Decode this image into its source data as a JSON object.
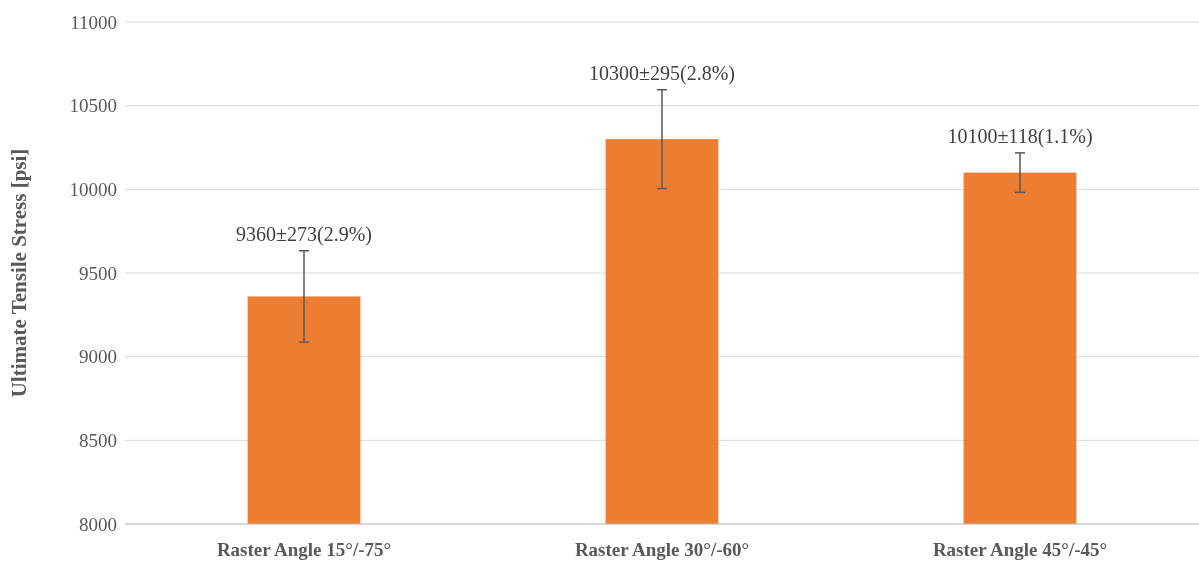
{
  "chart_data": {
    "type": "bar",
    "ylabel": "Ultimate Tensile Stress [psi]",
    "categories": [
      "Raster Angle 15°/-75°",
      "Raster Angle 30°/-60°",
      "Raster Angle 45°/-45°"
    ],
    "values": [
      9360,
      10300,
      10100
    ],
    "errors": [
      273,
      295,
      118
    ],
    "value_labels": [
      "9360±273(2.9%)",
      "10300±295(2.8%)",
      "10100±118(1.1%)"
    ],
    "color": "#ed7d31",
    "ylim": [
      8000,
      11000
    ],
    "yticks": [
      8000,
      8500,
      9000,
      9500,
      10000,
      10500,
      11000
    ],
    "grid": "y"
  }
}
